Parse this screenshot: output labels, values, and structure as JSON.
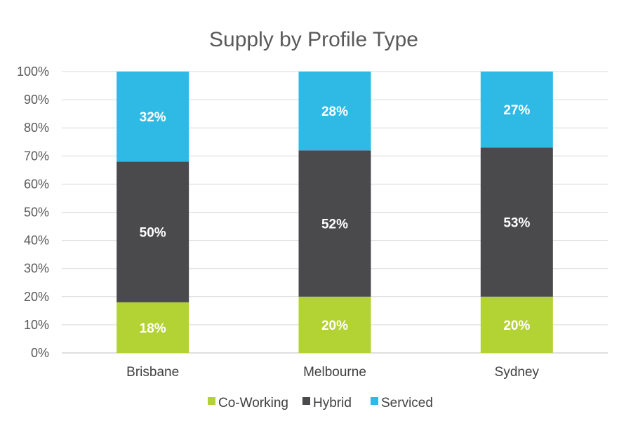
{
  "chart_data": {
    "type": "bar",
    "stacked": true,
    "title": "Supply by Profile Type",
    "xlabel": "",
    "ylabel": "",
    "ylim": [
      0,
      100
    ],
    "y_ticks": [
      "0%",
      "10%",
      "20%",
      "30%",
      "40%",
      "50%",
      "60%",
      "70%",
      "80%",
      "90%",
      "100%"
    ],
    "grid": true,
    "legend_position": "bottom",
    "categories": [
      "Brisbane",
      "Melbourne",
      "Sydney"
    ],
    "series": [
      {
        "name": "Co-Working",
        "color": "#b3d234",
        "values": [
          18,
          20,
          20
        ],
        "labels": [
          "18%",
          "20%",
          "20%"
        ]
      },
      {
        "name": "Hybrid",
        "color": "#4a4a4d",
        "values": [
          50,
          52,
          53
        ],
        "labels": [
          "50%",
          "52%",
          "53%"
        ]
      },
      {
        "name": "Serviced",
        "color": "#2fb9e5",
        "values": [
          32,
          28,
          27
        ],
        "labels": [
          "32%",
          "28%",
          "27%"
        ]
      }
    ]
  }
}
